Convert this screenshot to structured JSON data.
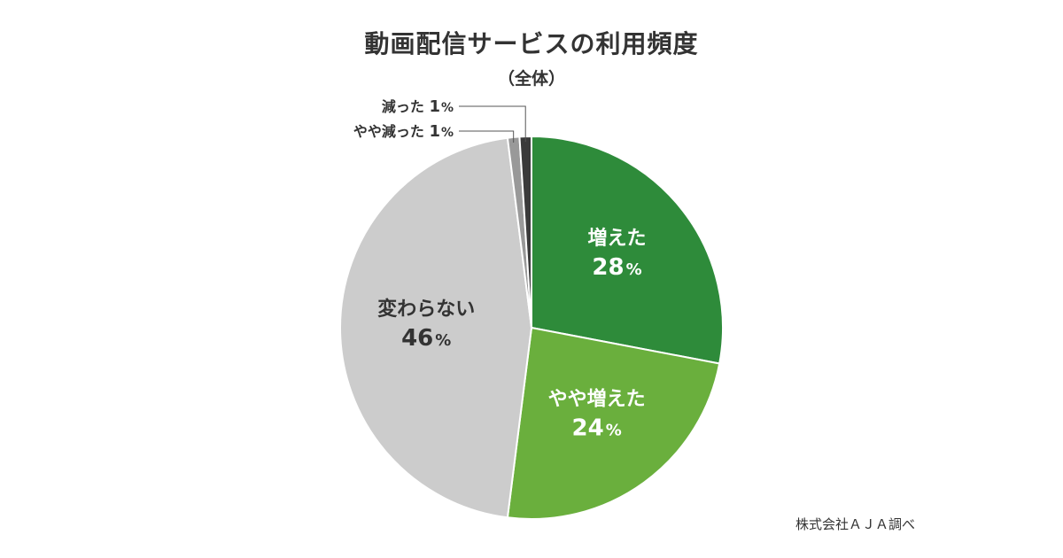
{
  "chart_data": {
    "type": "pie",
    "title": "動画配信サービスの利用頻度",
    "subtitle": "（全体）",
    "unit": "%",
    "slices": [
      {
        "label": "増えた",
        "value": 28,
        "color": "#2e8b3a",
        "label_color": "#ffffff"
      },
      {
        "label": "やや増えた",
        "value": 24,
        "color": "#6aaf3d",
        "label_color": "#ffffff"
      },
      {
        "label": "変わらない",
        "value": 46,
        "color": "#cccccc",
        "label_color": "#333333"
      },
      {
        "label": "やや減った",
        "value": 1,
        "color": "#999999",
        "label_color": "#333333"
      },
      {
        "label": "減った",
        "value": 1,
        "color": "#3a3a3a",
        "label_color": "#333333"
      }
    ],
    "start_position": "top, clockwise"
  },
  "source": "株式会社ＡＪＡ調べ"
}
